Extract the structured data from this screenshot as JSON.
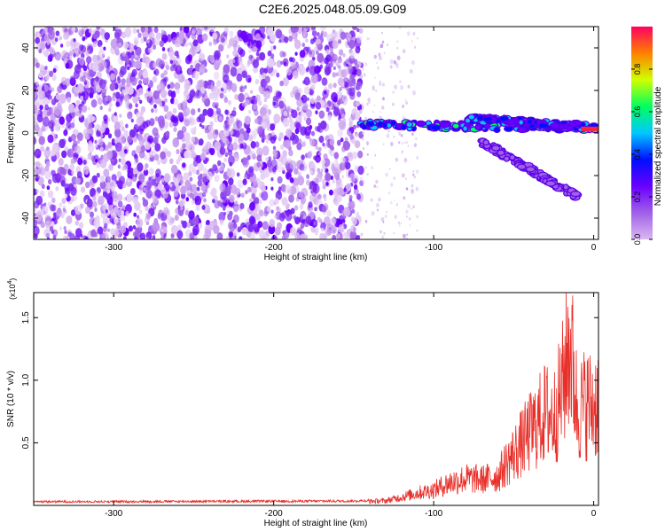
{
  "title": "C2E6.2025.048.05.09.G09",
  "chart_data": [
    {
      "type": "heatmap",
      "xlabel": "Height of straight line (km)",
      "ylabel": "Frequency (Hz)",
      "xlim": [
        -350,
        3
      ],
      "ylim": [
        -50,
        50
      ],
      "xticks": [
        -300,
        -200,
        -100,
        0
      ],
      "yticks": [
        -40,
        -20,
        0,
        20,
        40
      ],
      "colorbar": {
        "label": "Normalized spectral amplitude",
        "range": [
          0.0,
          1.0
        ],
        "ticks": [
          "0.0",
          "0.2",
          "0.4",
          "0.6",
          "0.8"
        ],
        "tick_values": [
          0.0,
          0.2,
          0.4,
          0.6,
          0.8
        ],
        "colormap": [
          "#d9b8f0",
          "#a060e8",
          "#6a00ff",
          "#0010ff",
          "#00c8ff",
          "#00ff60",
          "#d0ff00",
          "#ff8000",
          "#ff0060"
        ]
      },
      "regions": [
        {
          "name": "noise",
          "x": [
            -350,
            -145
          ],
          "freq": [
            -50,
            50
          ],
          "amplitude": 0.05
        },
        {
          "name": "sparse",
          "x": [
            -145,
            -110
          ],
          "freq": [
            -50,
            50
          ],
          "amplitude": 0.02
        },
        {
          "name": "main-trace",
          "x": [
            -145,
            3
          ],
          "freq_start": 4,
          "freq_end": 2,
          "amplitude": 0.45
        },
        {
          "name": "upper-branch",
          "x": [
            -80,
            -5
          ],
          "freq_start": 7,
          "freq_end": 3,
          "amplitude": 0.35
        },
        {
          "name": "lower-branch",
          "x": [
            -70,
            -10
          ],
          "freq_start": -4,
          "freq_end": -30,
          "amplitude": 0.12
        }
      ]
    },
    {
      "type": "line",
      "xlabel": "Height of straight line (km)",
      "ylabel": "SNR (10 * v/v)",
      "yscale_label": "(x10",
      "yscale_exp": "4",
      "yscale_close": ")",
      "xlim": [
        -350,
        3
      ],
      "ylim": [
        0,
        17000
      ],
      "xticks": [
        -300,
        -200,
        -100,
        0
      ],
      "yticks": [
        0.5,
        1.0,
        1.5
      ],
      "ytick_labels": [
        "0.5",
        "1.0",
        "1.5"
      ],
      "color": "#e8302a",
      "series": [
        {
          "x": [
            -350,
            -300,
            -250,
            -200,
            -150,
            -130,
            -120,
            -110,
            -100,
            -90,
            -80,
            -70,
            -60,
            -55,
            -50,
            -45,
            -40,
            -35,
            -30,
            -25,
            -20,
            -15,
            -10,
            -5,
            0,
            3
          ],
          "y": [
            300,
            300,
            320,
            330,
            350,
            450,
            800,
            1200,
            1500,
            2200,
            2600,
            2500,
            2800,
            4000,
            5000,
            6000,
            7000,
            8000,
            9000,
            8500,
            11000,
            16000,
            9000,
            10000,
            9500,
            10500
          ]
        }
      ]
    }
  ]
}
